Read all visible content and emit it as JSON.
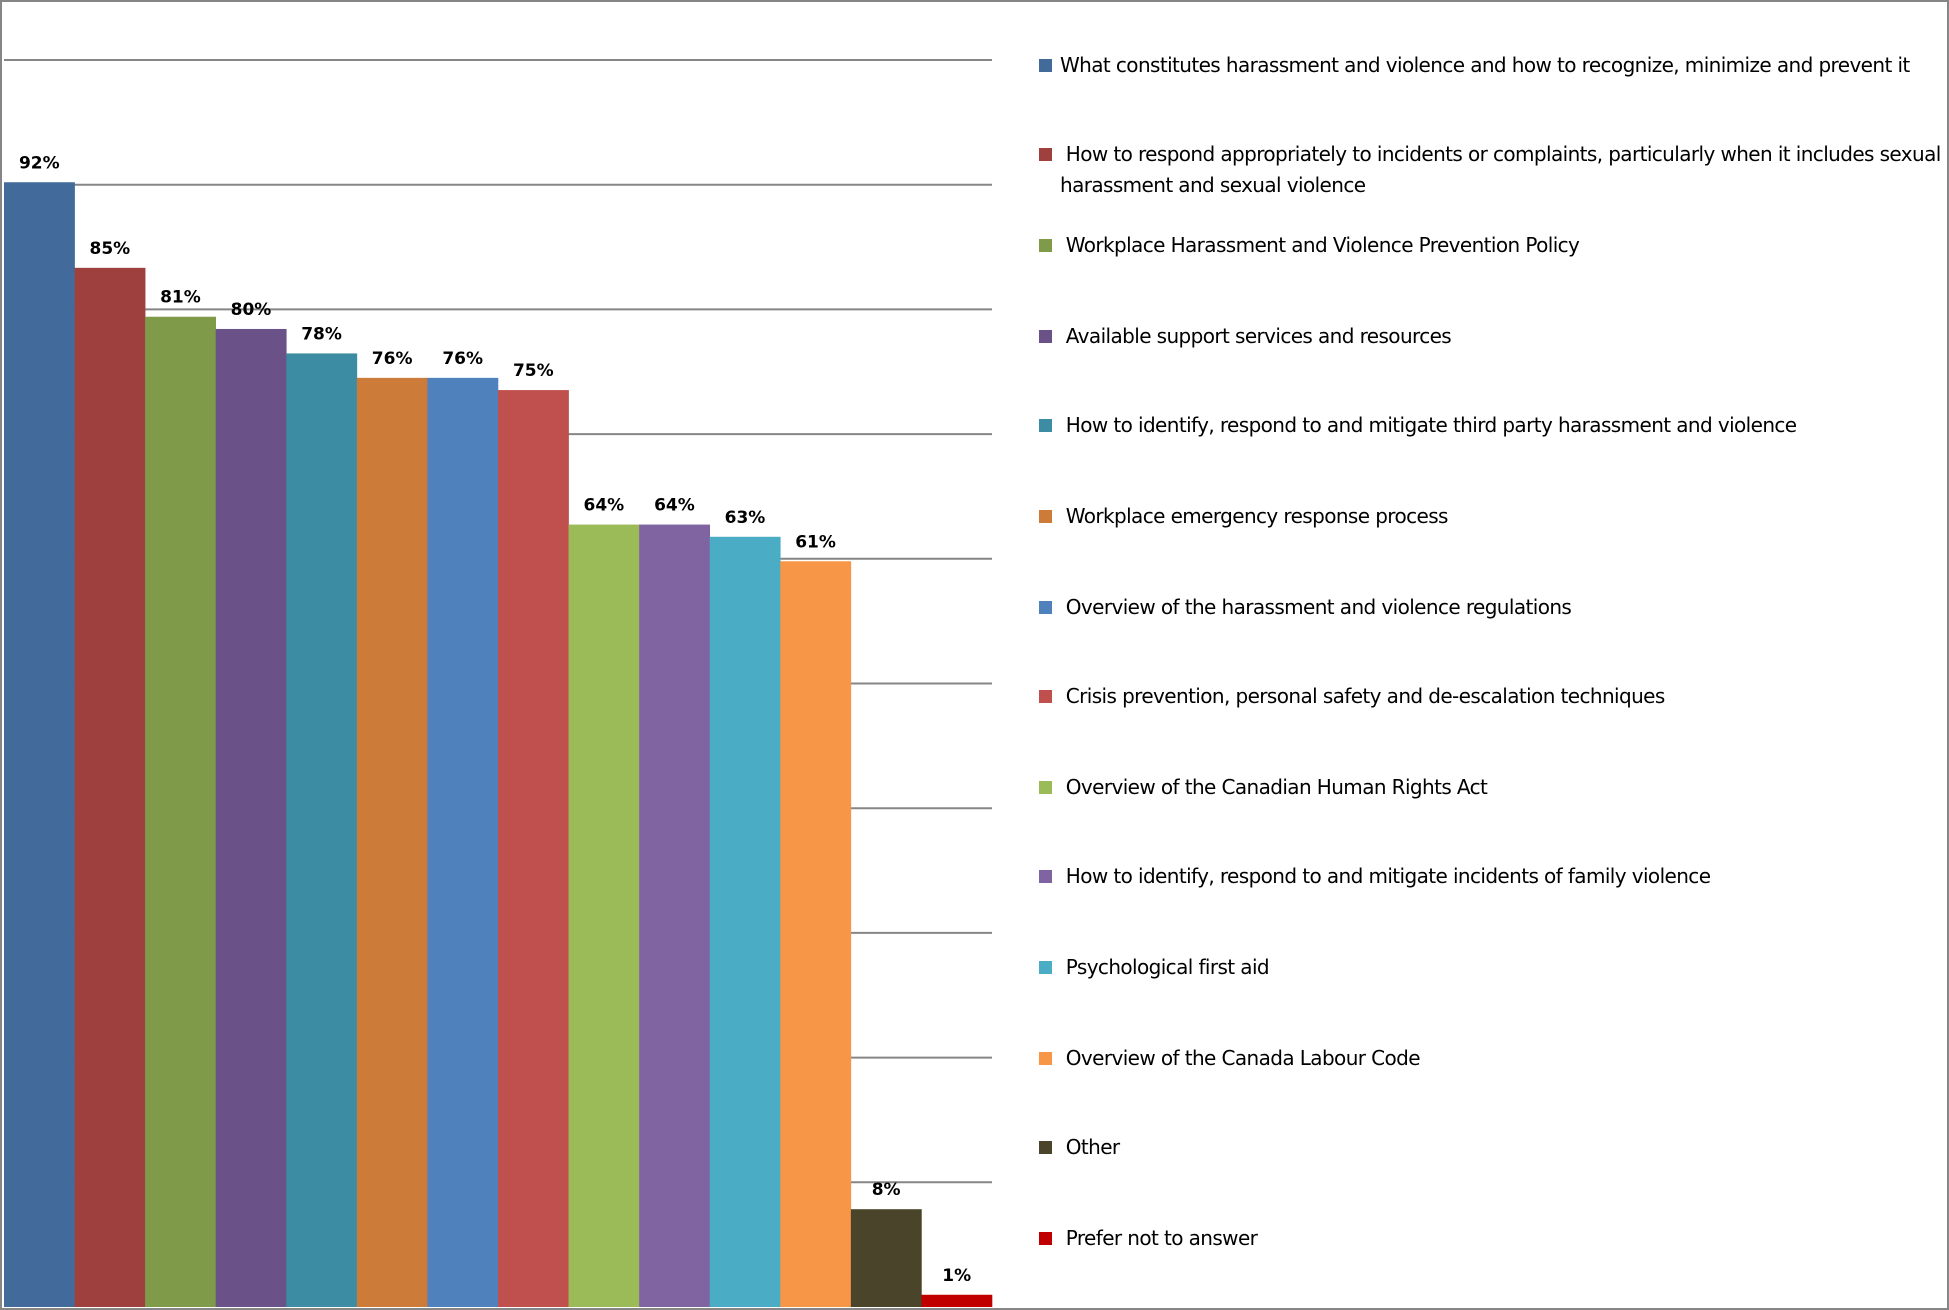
{
  "chart_data": {
    "type": "bar",
    "title": "",
    "xlabel": "",
    "ylabel": "",
    "ylim": [
      0,
      102
    ],
    "grid": true,
    "gridline_divisions": 10,
    "legend_position": "right",
    "value_format": "percent",
    "categories": [
      "What constitutes harassment and violence and how to recognize, minimize and prevent it",
      " How to respond appropriately to incidents or complaints, particularly when it includes sexual harassment and sexual violence",
      "Workplace Harassment and Violence Prevention Policy",
      "Available support services and resources",
      "How to identify, respond to and mitigate third party harassment and violence",
      "Workplace emergency response process",
      "Overview of the harassment and violence regulations",
      "Crisis prevention, personal safety and de-escalation techniques",
      "Overview of the Canadian Human Rights Act",
      "How to identify, respond to and mitigate incidents of family violence",
      "Psychological first aid",
      "Overview of the Canada Labour Code",
      "Other",
      "Prefer not to answer"
    ],
    "values": [
      92,
      85,
      81,
      80,
      78,
      76,
      76,
      75,
      64,
      64,
      63,
      61,
      8,
      1
    ],
    "labels": [
      "92%",
      "85%",
      "81%",
      "80%",
      "78%",
      "76%",
      "76%",
      "75%",
      "64%",
      "64%",
      "63%",
      "61%",
      "8%",
      "1%"
    ],
    "colors": [
      "#426A9A",
      "#9E413E",
      "#7F9A48",
      "#6A5289",
      "#3C8DA3",
      "#CC7B38",
      "#4F81BD",
      "#C0504D",
      "#9BBB59",
      "#8064A2",
      "#4BACC6",
      "#F79646",
      "#4A452A",
      "#C00000"
    ]
  },
  "legend": {
    "items": [
      {
        "label": "What constitutes harassment and violence and how to recognize, minimize and prevent it",
        "color": "#426A9A"
      },
      {
        "label": " How to respond appropriately to incidents or complaints, particularly when it includes sexual harassment and sexual violence",
        "color": "#9E413E"
      },
      {
        "label": " Workplace Harassment and Violence Prevention Policy",
        "color": "#7F9A48"
      },
      {
        "label": " Available support services and resources",
        "color": "#6A5289"
      },
      {
        "label": " How to identify, respond to and mitigate third party harassment and violence",
        "color": "#3C8DA3"
      },
      {
        "label": " Workplace emergency response process",
        "color": "#CC7B38"
      },
      {
        "label": " Overview of the harassment and violence regulations",
        "color": "#4F81BD"
      },
      {
        "label": " Crisis prevention, personal safety and de-escalation techniques",
        "color": "#C0504D"
      },
      {
        "label": " Overview of the Canadian Human Rights Act",
        "color": "#9BBB59"
      },
      {
        "label": " How to identify, respond to and mitigate incidents of family violence",
        "color": "#8064A2"
      },
      {
        "label": " Psychological first aid",
        "color": "#4BACC6"
      },
      {
        "label": " Overview of the Canada Labour Code",
        "color": "#F79646"
      },
      {
        "label": " Other",
        "color": "#4A452A"
      },
      {
        "label": " Prefer not to answer",
        "color": "#C00000"
      }
    ]
  },
  "style": {
    "gridline_color": "#868686",
    "border_color": "#868686"
  }
}
